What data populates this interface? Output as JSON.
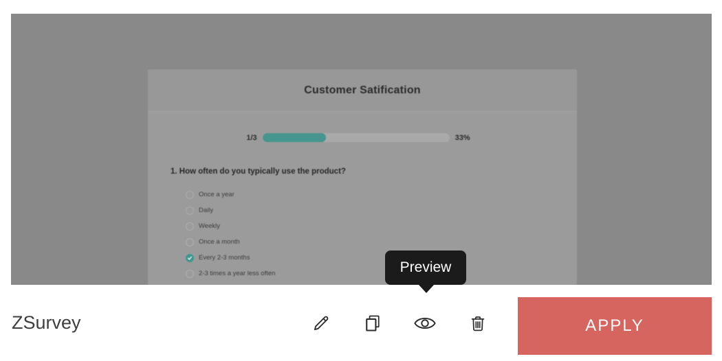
{
  "overlay": {
    "color": "#898989"
  },
  "survey_preview": {
    "title": "Customer Satification",
    "progress": {
      "step_label": "1/3",
      "percent_label": "33%",
      "fill_percent": 34
    },
    "question": "1. How often do you typically use the product?",
    "options": [
      {
        "label": "Once a year",
        "selected": false
      },
      {
        "label": "Daily",
        "selected": false
      },
      {
        "label": "Weekly",
        "selected": false
      },
      {
        "label": "Once a month",
        "selected": false
      },
      {
        "label": "Every 2-3 months",
        "selected": true
      },
      {
        "label": "2-3 times a year less often",
        "selected": false
      }
    ],
    "accent_color": "#46958e"
  },
  "tooltip": {
    "label": "Preview"
  },
  "footer": {
    "survey_name": "ZSurvey",
    "actions": [
      {
        "name": "edit",
        "icon": "pencil-icon"
      },
      {
        "name": "duplicate",
        "icon": "copy-icon"
      },
      {
        "name": "preview",
        "icon": "eye-icon"
      },
      {
        "name": "delete",
        "icon": "trash-icon"
      }
    ],
    "apply_label": "APPLY",
    "apply_color": "#d5655e"
  }
}
